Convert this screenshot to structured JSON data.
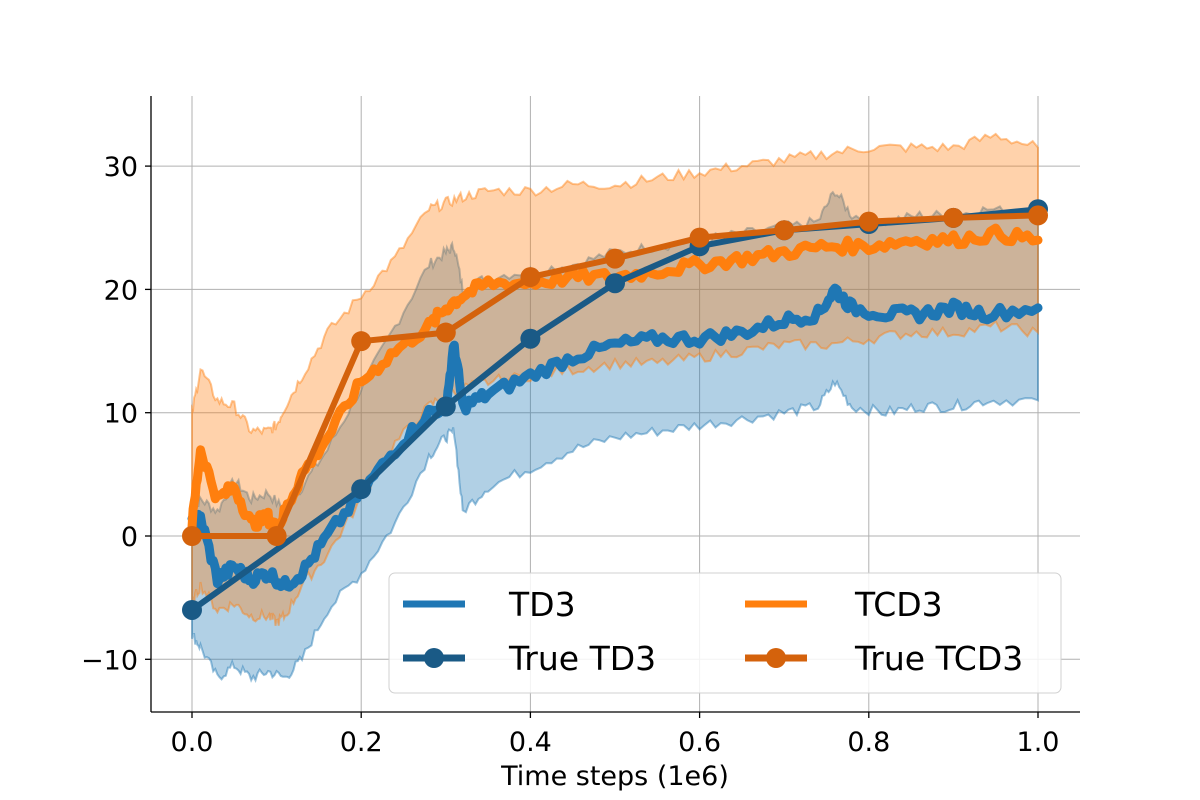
{
  "chart_data": {
    "type": "line",
    "title": "",
    "xlabel": "Time steps (1e6)",
    "ylabel": "",
    "xlim": [
      -0.05,
      1.05
    ],
    "ylim": [
      -14.5,
      35.5
    ],
    "grid": true,
    "xticks": [
      0.0,
      0.2,
      0.4,
      0.6,
      0.8,
      1.0
    ],
    "xtick_labels": [
      "0.0",
      "0.2",
      "0.4",
      "0.6",
      "0.8",
      "1.0"
    ],
    "yticks": [
      -10,
      0,
      10,
      20,
      30
    ],
    "ytick_labels": [
      "−10",
      "0",
      "10",
      "20",
      "30"
    ],
    "legend": {
      "placement": "lower-right",
      "columns": 2
    },
    "colors": {
      "td3": "#1f77b4",
      "td3_band": "#1f77b4",
      "tcd3": "#ff7f0e",
      "tcd3_band": "#ff7f0e",
      "true_td3": "#1a5a86",
      "true_tcd3": "#d4620c"
    },
    "series": [
      {
        "name": "TD3",
        "kind": "mean-with-band",
        "x": [
          0.0,
          0.01,
          0.03,
          0.05,
          0.07,
          0.09,
          0.11,
          0.13,
          0.16,
          0.2,
          0.24,
          0.28,
          0.3,
          0.31,
          0.32,
          0.35,
          0.4,
          0.45,
          0.5,
          0.55,
          0.6,
          0.65,
          0.7,
          0.74,
          0.76,
          0.78,
          0.82,
          0.86,
          0.9,
          0.94,
          1.0
        ],
        "mean": [
          1.0,
          1.5,
          -3.5,
          -2.5,
          -3.5,
          -3.0,
          -4.0,
          -3.0,
          0.0,
          3.5,
          7.0,
          10.0,
          10.5,
          15.5,
          10.5,
          11.5,
          13.0,
          14.5,
          15.5,
          16.0,
          16.0,
          16.5,
          17.5,
          18.0,
          20.0,
          18.5,
          18.0,
          18.0,
          18.5,
          18.0,
          18.5
        ],
        "upper": [
          2.0,
          3.0,
          2.0,
          4.5,
          3.0,
          3.5,
          2.0,
          4.0,
          7.0,
          12.0,
          17.0,
          22.0,
          23.0,
          23.5,
          20.0,
          21.0,
          21.5,
          22.0,
          23.0,
          23.5,
          24.0,
          24.5,
          25.0,
          25.5,
          28.0,
          26.0,
          25.5,
          26.0,
          26.0,
          26.5,
          26.0
        ],
        "lower": [
          -8.0,
          -9.0,
          -11.5,
          -10.5,
          -11.5,
          -11.0,
          -11.5,
          -10.0,
          -6.0,
          -3.0,
          1.0,
          6.5,
          8.0,
          8.5,
          2.0,
          4.0,
          5.5,
          7.0,
          8.0,
          8.5,
          9.0,
          9.5,
          10.0,
          10.5,
          12.5,
          10.5,
          10.0,
          10.5,
          10.5,
          11.0,
          11.0
        ]
      },
      {
        "name": "TCD3",
        "kind": "mean-with-band",
        "x": [
          0.0,
          0.01,
          0.03,
          0.05,
          0.07,
          0.09,
          0.1,
          0.11,
          0.13,
          0.16,
          0.2,
          0.24,
          0.28,
          0.3,
          0.32,
          0.35,
          0.4,
          0.45,
          0.5,
          0.55,
          0.6,
          0.65,
          0.7,
          0.75,
          0.8,
          0.85,
          0.9,
          0.95,
          1.0
        ],
        "mean": [
          1.0,
          7.0,
          3.0,
          4.0,
          1.0,
          1.5,
          0.5,
          2.0,
          5.0,
          8.0,
          12.5,
          15.0,
          17.0,
          18.5,
          19.5,
          20.5,
          20.5,
          21.0,
          21.0,
          21.5,
          22.0,
          22.5,
          23.0,
          23.5,
          23.5,
          24.0,
          24.0,
          24.5,
          24.0
        ],
        "upper": [
          10.0,
          13.5,
          11.0,
          10.5,
          8.5,
          8.5,
          9.0,
          10.5,
          13.0,
          16.5,
          19.5,
          22.5,
          26.5,
          27.0,
          27.5,
          28.0,
          28.0,
          28.5,
          28.5,
          29.0,
          29.5,
          30.0,
          30.5,
          31.0,
          31.5,
          31.5,
          31.5,
          32.5,
          31.5
        ],
        "lower": [
          -5.5,
          -4.0,
          -6.0,
          -5.5,
          -6.5,
          -6.5,
          -7.0,
          -6.5,
          -4.0,
          -1.5,
          3.0,
          7.5,
          10.5,
          11.5,
          12.0,
          12.5,
          13.0,
          13.5,
          14.0,
          14.0,
          14.5,
          15.0,
          15.5,
          15.5,
          16.0,
          16.5,
          16.5,
          17.0,
          16.5
        ]
      },
      {
        "name": "True TD3",
        "kind": "markers-line",
        "x": [
          0.0,
          0.2,
          0.3,
          0.4,
          0.5,
          0.6,
          0.7,
          0.8,
          0.9,
          1.0
        ],
        "y": [
          -6.0,
          3.8,
          10.5,
          16.0,
          20.5,
          23.5,
          24.8,
          25.3,
          25.8,
          26.5
        ]
      },
      {
        "name": "True TCD3",
        "kind": "markers-line",
        "x": [
          0.0,
          0.1,
          0.2,
          0.3,
          0.4,
          0.5,
          0.6,
          0.7,
          0.8,
          0.9,
          1.0
        ],
        "y": [
          0.0,
          0.0,
          15.8,
          16.5,
          21.0,
          22.5,
          24.2,
          24.8,
          25.5,
          25.8,
          26.0
        ]
      }
    ]
  }
}
